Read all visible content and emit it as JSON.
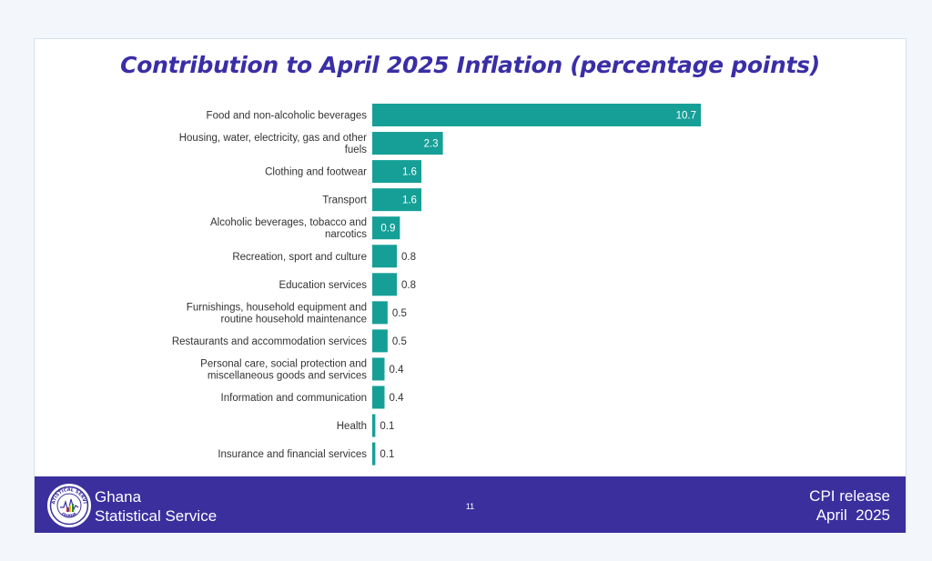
{
  "slide": {
    "title": "Contribution to April 2025 Inflation (percentage points)",
    "page_number": "11"
  },
  "footer": {
    "org_line1": "Ghana",
    "org_line2": "Statistical Service",
    "release_line1": "CPI release",
    "release_line2": "April  2025",
    "logo_text_top": "STATISTICAL SERVICE",
    "logo_text_bottom": "GHANA",
    "background_color": "#3b2f9e"
  },
  "chart_data": {
    "type": "bar",
    "orientation": "horizontal",
    "title": "Contribution to April 2025 Inflation (percentage points)",
    "xlabel": "",
    "ylabel": "",
    "bar_color": "#159f97",
    "grid": false,
    "categories": [
      [
        "Food and non-alcoholic beverages"
      ],
      [
        "Housing, water, electricity, gas and other",
        "fuels"
      ],
      [
        "Clothing and footwear"
      ],
      [
        "Transport"
      ],
      [
        "Alcoholic beverages, tobacco and",
        "narcotics"
      ],
      [
        "Recreation, sport and culture"
      ],
      [
        "Education services"
      ],
      [
        "Furnishings, household equipment and",
        "routine household maintenance"
      ],
      [
        "Restaurants and accommodation services"
      ],
      [
        "Personal care, social protection and",
        "miscellaneous goods and services"
      ],
      [
        "Information and communication"
      ],
      [
        "Health"
      ],
      [
        "Insurance and financial services"
      ]
    ],
    "values": [
      10.7,
      2.3,
      1.6,
      1.6,
      0.9,
      0.8,
      0.8,
      0.5,
      0.5,
      0.4,
      0.4,
      0.1,
      0.1
    ],
    "data_labels": [
      "10.7",
      "2.3",
      "1.6",
      "1.6",
      "0.9",
      "0.8",
      "0.8",
      "0.5",
      "0.5",
      "0.4",
      "0.4",
      "0.1",
      "0.1"
    ]
  }
}
